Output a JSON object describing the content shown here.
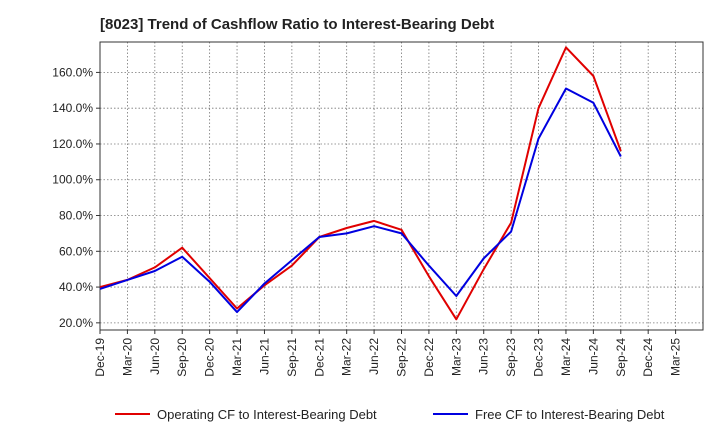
{
  "chart_data": {
    "type": "line",
    "title": "[8023]  Trend of Cashflow Ratio to Interest-Bearing Debt",
    "xlabel": "",
    "ylabel": "",
    "categories": [
      "Dec-19",
      "Mar-20",
      "Jun-20",
      "Sep-20",
      "Dec-20",
      "Mar-21",
      "Jun-21",
      "Sep-21",
      "Dec-21",
      "Mar-22",
      "Jun-22",
      "Sep-22",
      "Dec-22",
      "Mar-23",
      "Jun-23",
      "Sep-23",
      "Dec-23",
      "Mar-24",
      "Jun-24",
      "Sep-24",
      "Dec-24",
      "Mar-25"
    ],
    "ylim": [
      16,
      177
    ],
    "yticks": [
      20,
      40,
      60,
      80,
      100,
      120,
      140,
      160
    ],
    "ytick_labels": [
      "20.0%",
      "40.0%",
      "60.0%",
      "80.0%",
      "100.0%",
      "120.0%",
      "140.0%",
      "160.0%"
    ],
    "grid": true,
    "legend_position": "bottom",
    "series": [
      {
        "name": "Operating CF to Interest-Bearing Debt",
        "color": "#e00000",
        "values": [
          40,
          44,
          51,
          62,
          45,
          28,
          41,
          52,
          68,
          73,
          77,
          72,
          46,
          22,
          50,
          76,
          140,
          174,
          158,
          116,
          null,
          null
        ]
      },
      {
        "name": "Free CF to Interest-Bearing Debt",
        "color": "#0000e0",
        "values": [
          39,
          44,
          49,
          57,
          43,
          26,
          42,
          55,
          68,
          70,
          74,
          70,
          52,
          35,
          56,
          71,
          123,
          151,
          143,
          113,
          null,
          null
        ]
      }
    ]
  }
}
